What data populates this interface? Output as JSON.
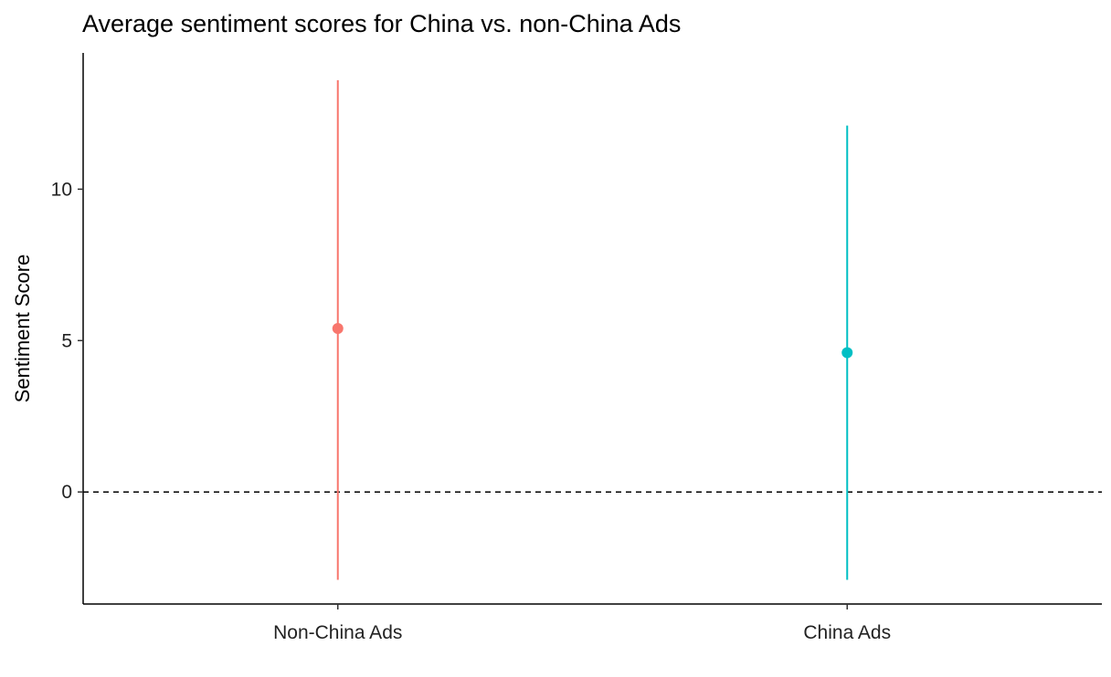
{
  "chart_data": {
    "type": "errorbar",
    "title": "Average sentiment scores for China vs. non-China Ads",
    "xlabel": "",
    "ylabel": "Sentiment Score",
    "categories": [
      "Non-China Ads",
      "China Ads"
    ],
    "points": [
      {
        "category": "Non-China Ads",
        "mean": 5.4,
        "lower": -2.9,
        "upper": 13.6,
        "color": "#F8766D"
      },
      {
        "category": "China Ads",
        "mean": 4.6,
        "lower": -2.9,
        "upper": 12.1,
        "color": "#00BFC4"
      }
    ],
    "yticks": [
      0,
      5,
      10
    ],
    "ylim": [
      -3.7,
      14.5
    ],
    "reference_line": {
      "y": 0,
      "style": "dashed"
    },
    "grid": false,
    "legend": "none"
  }
}
